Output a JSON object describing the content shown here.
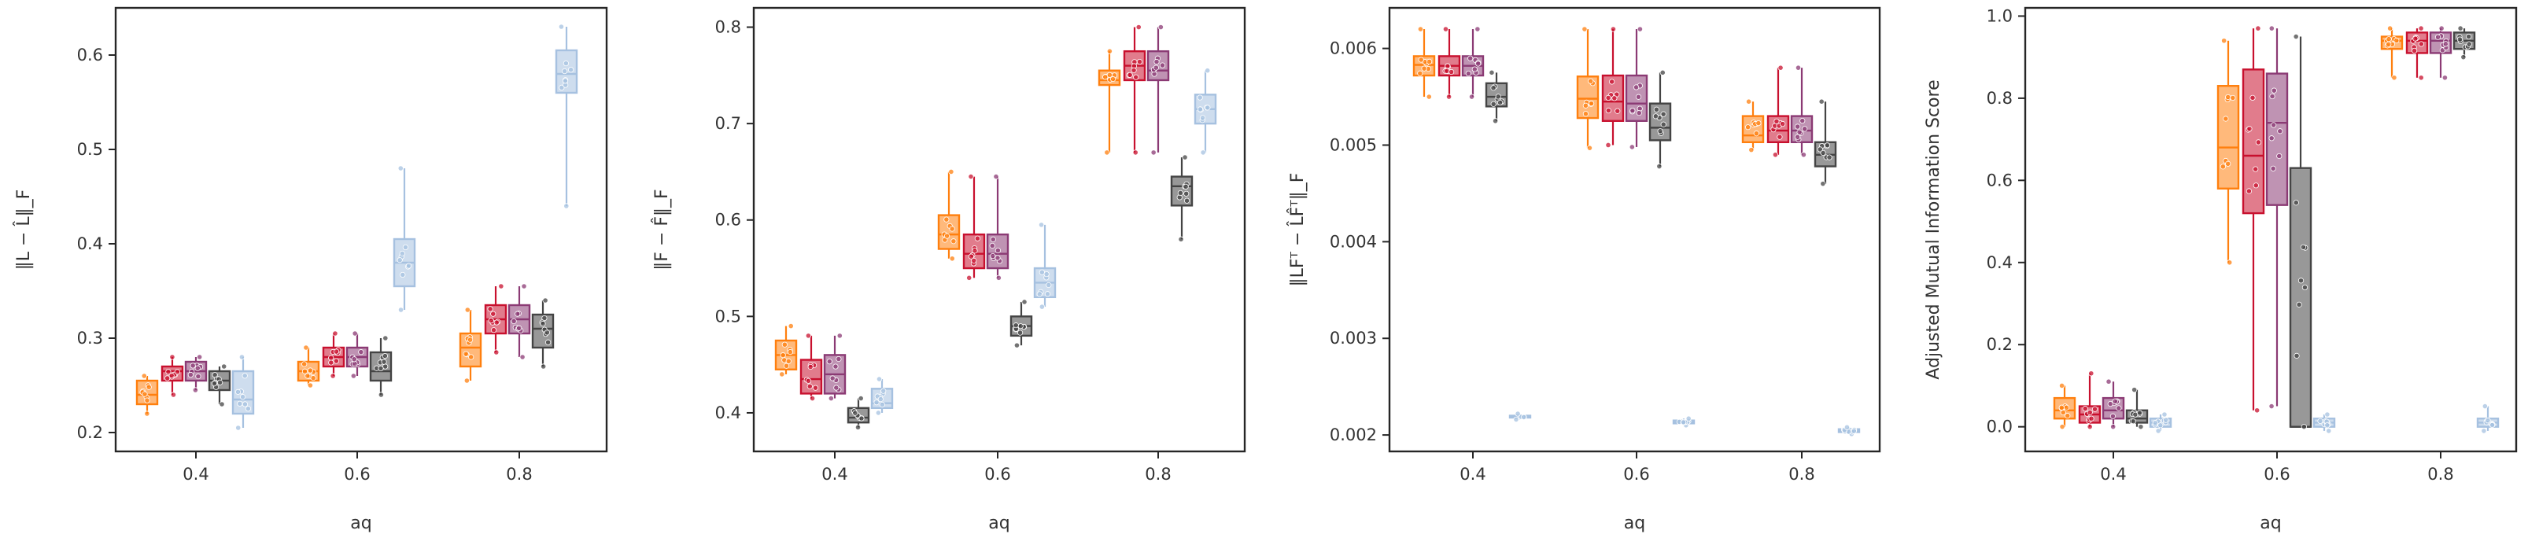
{
  "figure": {
    "palette": {
      "orange": "#ff7f0e",
      "crimson": "#c8102e",
      "purple": "#8b3a74",
      "gray": "#444444",
      "lightblue": "#a6c1e0"
    }
  },
  "chart_data": [
    {
      "type": "box",
      "title": "",
      "xlabel": "aq",
      "ylabel": "‖L − L̂‖_F",
      "categories": [
        "0.4",
        "0.6",
        "0.8"
      ],
      "ylim": [
        0.18,
        0.65
      ],
      "yticks": [
        0.2,
        0.3,
        0.4,
        0.5,
        0.6
      ],
      "ytick_labels": [
        "0.2",
        "0.3",
        "0.4",
        "0.5",
        "0.6"
      ],
      "series": [
        {
          "color_key": "orange",
          "boxes": [
            {
              "min": 0.22,
              "q1": 0.23,
              "median": 0.24,
              "q3": 0.255,
              "max": 0.26
            },
            {
              "min": 0.25,
              "q1": 0.255,
              "median": 0.265,
              "q3": 0.275,
              "max": 0.29
            },
            {
              "min": 0.255,
              "q1": 0.27,
              "median": 0.29,
              "q3": 0.305,
              "max": 0.33
            }
          ]
        },
        {
          "color_key": "crimson",
          "boxes": [
            {
              "min": 0.24,
              "q1": 0.255,
              "median": 0.265,
              "q3": 0.27,
              "max": 0.28
            },
            {
              "min": 0.26,
              "q1": 0.27,
              "median": 0.28,
              "q3": 0.29,
              "max": 0.305
            },
            {
              "min": 0.285,
              "q1": 0.305,
              "median": 0.32,
              "q3": 0.335,
              "max": 0.355
            }
          ]
        },
        {
          "color_key": "purple",
          "boxes": [
            {
              "min": 0.245,
              "q1": 0.255,
              "median": 0.265,
              "q3": 0.275,
              "max": 0.28
            },
            {
              "min": 0.26,
              "q1": 0.27,
              "median": 0.28,
              "q3": 0.29,
              "max": 0.305
            },
            {
              "min": 0.28,
              "q1": 0.305,
              "median": 0.32,
              "q3": 0.335,
              "max": 0.355
            }
          ]
        },
        {
          "color_key": "gray",
          "boxes": [
            {
              "min": 0.23,
              "q1": 0.245,
              "median": 0.255,
              "q3": 0.265,
              "max": 0.27
            },
            {
              "min": 0.24,
              "q1": 0.255,
              "median": 0.265,
              "q3": 0.285,
              "max": 0.3
            },
            {
              "min": 0.27,
              "q1": 0.29,
              "median": 0.31,
              "q3": 0.325,
              "max": 0.34
            }
          ]
        },
        {
          "color_key": "lightblue",
          "boxes": [
            {
              "min": 0.205,
              "q1": 0.22,
              "median": 0.235,
              "q3": 0.265,
              "max": 0.28
            },
            {
              "min": 0.33,
              "q1": 0.355,
              "median": 0.38,
              "q3": 0.405,
              "max": 0.48
            },
            {
              "min": 0.44,
              "q1": 0.56,
              "median": 0.58,
              "q3": 0.605,
              "max": 0.63
            }
          ]
        }
      ]
    },
    {
      "type": "box",
      "title": "",
      "xlabel": "aq",
      "ylabel": "‖F − F̂‖_F",
      "categories": [
        "0.4",
        "0.6",
        "0.8"
      ],
      "ylim": [
        0.36,
        0.82
      ],
      "yticks": [
        0.4,
        0.5,
        0.6,
        0.7,
        0.8
      ],
      "ytick_labels": [
        "0.4",
        "0.5",
        "0.6",
        "0.7",
        "0.8"
      ],
      "series": [
        {
          "color_key": "orange",
          "boxes": [
            {
              "min": 0.44,
              "q1": 0.445,
              "median": 0.46,
              "q3": 0.475,
              "max": 0.49
            },
            {
              "min": 0.56,
              "q1": 0.57,
              "median": 0.585,
              "q3": 0.605,
              "max": 0.65
            },
            {
              "min": 0.67,
              "q1": 0.74,
              "median": 0.745,
              "q3": 0.755,
              "max": 0.775
            }
          ]
        },
        {
          "color_key": "crimson",
          "boxes": [
            {
              "min": 0.415,
              "q1": 0.42,
              "median": 0.435,
              "q3": 0.455,
              "max": 0.48
            },
            {
              "min": 0.54,
              "q1": 0.55,
              "median": 0.565,
              "q3": 0.585,
              "max": 0.645
            },
            {
              "min": 0.67,
              "q1": 0.745,
              "median": 0.76,
              "q3": 0.775,
              "max": 0.8
            }
          ]
        },
        {
          "color_key": "purple",
          "boxes": [
            {
              "min": 0.415,
              "q1": 0.42,
              "median": 0.44,
              "q3": 0.46,
              "max": 0.48
            },
            {
              "min": 0.54,
              "q1": 0.55,
              "median": 0.565,
              "q3": 0.585,
              "max": 0.645
            },
            {
              "min": 0.67,
              "q1": 0.745,
              "median": 0.755,
              "q3": 0.775,
              "max": 0.8
            }
          ]
        },
        {
          "color_key": "gray",
          "boxes": [
            {
              "min": 0.385,
              "q1": 0.39,
              "median": 0.395,
              "q3": 0.405,
              "max": 0.415
            },
            {
              "min": 0.47,
              "q1": 0.48,
              "median": 0.49,
              "q3": 0.5,
              "max": 0.515
            },
            {
              "min": 0.58,
              "q1": 0.615,
              "median": 0.635,
              "q3": 0.645,
              "max": 0.665
            }
          ]
        },
        {
          "color_key": "lightblue",
          "boxes": [
            {
              "min": 0.4,
              "q1": 0.405,
              "median": 0.41,
              "q3": 0.425,
              "max": 0.435
            },
            {
              "min": 0.51,
              "q1": 0.52,
              "median": 0.535,
              "q3": 0.55,
              "max": 0.595
            },
            {
              "min": 0.67,
              "q1": 0.7,
              "median": 0.715,
              "q3": 0.73,
              "max": 0.755
            }
          ]
        }
      ]
    },
    {
      "type": "box",
      "title": "",
      "xlabel": "aq",
      "ylabel": "‖LFᵀ − L̂F̂ᵀ‖_F",
      "categories": [
        "0.4",
        "0.6",
        "0.8"
      ],
      "ylim": [
        0.00183,
        0.00642
      ],
      "yticks": [
        0.002,
        0.003,
        0.004,
        0.005,
        0.006
      ],
      "ytick_labels": [
        "0.002",
        "0.003",
        "0.004",
        "0.005",
        "0.006"
      ],
      "series": [
        {
          "color_key": "orange",
          "boxes": [
            {
              "min": 0.0055,
              "q1": 0.00572,
              "median": 0.00583,
              "q3": 0.00592,
              "max": 0.0062
            },
            {
              "min": 0.00497,
              "q1": 0.00528,
              "median": 0.00548,
              "q3": 0.00571,
              "max": 0.0062
            },
            {
              "min": 0.00495,
              "q1": 0.00503,
              "median": 0.0051,
              "q3": 0.0053,
              "max": 0.00545
            }
          ]
        },
        {
          "color_key": "crimson",
          "boxes": [
            {
              "min": 0.0055,
              "q1": 0.00572,
              "median": 0.00582,
              "q3": 0.00592,
              "max": 0.0062
            },
            {
              "min": 0.005,
              "q1": 0.00525,
              "median": 0.00545,
              "q3": 0.00572,
              "max": 0.0062
            },
            {
              "min": 0.0049,
              "q1": 0.00503,
              "median": 0.00515,
              "q3": 0.0053,
              "max": 0.0058
            }
          ]
        },
        {
          "color_key": "purple",
          "boxes": [
            {
              "min": 0.0055,
              "q1": 0.00572,
              "median": 0.00582,
              "q3": 0.00592,
              "max": 0.0062
            },
            {
              "min": 0.00498,
              "q1": 0.00525,
              "median": 0.00543,
              "q3": 0.00572,
              "max": 0.0062
            },
            {
              "min": 0.0049,
              "q1": 0.00503,
              "median": 0.00515,
              "q3": 0.0053,
              "max": 0.0058
            }
          ]
        },
        {
          "color_key": "gray",
          "boxes": [
            {
              "min": 0.00525,
              "q1": 0.0054,
              "median": 0.0055,
              "q3": 0.00564,
              "max": 0.00575
            },
            {
              "min": 0.00478,
              "q1": 0.00505,
              "median": 0.00518,
              "q3": 0.00543,
              "max": 0.00575
            },
            {
              "min": 0.0046,
              "q1": 0.00478,
              "median": 0.0049,
              "q3": 0.00503,
              "max": 0.00545
            }
          ]
        },
        {
          "color_key": "lightblue",
          "boxes": [
            {
              "min": 0.00216,
              "q1": 0.00218,
              "median": 0.00219,
              "q3": 0.0022,
              "max": 0.00222
            },
            {
              "min": 0.0021,
              "q1": 0.00212,
              "median": 0.00213,
              "q3": 0.00215,
              "max": 0.00217
            },
            {
              "min": 0.00201,
              "q1": 0.00203,
              "median": 0.00204,
              "q3": 0.00206,
              "max": 0.00208
            }
          ]
        }
      ]
    },
    {
      "type": "box",
      "title": "",
      "xlabel": "aq",
      "ylabel": "Adjusted Mutual Information Score",
      "categories": [
        "0.4",
        "0.6",
        "0.8"
      ],
      "ylim": [
        -0.06,
        1.02
      ],
      "yticks": [
        0.0,
        0.2,
        0.4,
        0.6,
        0.8,
        1.0
      ],
      "ytick_labels": [
        "0.0",
        "0.2",
        "0.4",
        "0.6",
        "0.8",
        "1.0"
      ],
      "series": [
        {
          "color_key": "orange",
          "boxes": [
            {
              "min": 0.0,
              "q1": 0.02,
              "median": 0.04,
              "q3": 0.07,
              "max": 0.1
            },
            {
              "min": 0.4,
              "q1": 0.58,
              "median": 0.68,
              "q3": 0.83,
              "max": 0.94
            },
            {
              "min": 0.85,
              "q1": 0.92,
              "median": 0.94,
              "q3": 0.95,
              "max": 0.97
            }
          ]
        },
        {
          "color_key": "crimson",
          "boxes": [
            {
              "min": 0.0,
              "q1": 0.01,
              "median": 0.03,
              "q3": 0.05,
              "max": 0.13
            },
            {
              "min": 0.04,
              "q1": 0.52,
              "median": 0.66,
              "q3": 0.87,
              "max": 0.97
            },
            {
              "min": 0.85,
              "q1": 0.91,
              "median": 0.94,
              "q3": 0.96,
              "max": 0.97
            }
          ]
        },
        {
          "color_key": "purple",
          "boxes": [
            {
              "min": 0.0,
              "q1": 0.02,
              "median": 0.04,
              "q3": 0.07,
              "max": 0.11
            },
            {
              "min": 0.05,
              "q1": 0.54,
              "median": 0.74,
              "q3": 0.86,
              "max": 0.97
            },
            {
              "min": 0.85,
              "q1": 0.91,
              "median": 0.94,
              "q3": 0.96,
              "max": 0.97
            }
          ]
        },
        {
          "color_key": "gray",
          "boxes": [
            {
              "min": 0.0,
              "q1": 0.01,
              "median": 0.02,
              "q3": 0.04,
              "max": 0.09
            },
            {
              "min": 0.0,
              "q1": 0.0,
              "median": 0.0,
              "q3": 0.63,
              "max": 0.95
            },
            {
              "min": 0.9,
              "q1": 0.92,
              "median": 0.94,
              "q3": 0.96,
              "max": 0.97
            }
          ]
        },
        {
          "color_key": "lightblue",
          "boxes": [
            {
              "min": -0.01,
              "q1": 0.0,
              "median": 0.01,
              "q3": 0.02,
              "max": 0.03
            },
            {
              "min": -0.01,
              "q1": 0.0,
              "median": 0.01,
              "q3": 0.02,
              "max": 0.03
            },
            {
              "min": -0.01,
              "q1": 0.0,
              "median": 0.01,
              "q3": 0.02,
              "max": 0.05
            }
          ]
        }
      ]
    }
  ]
}
